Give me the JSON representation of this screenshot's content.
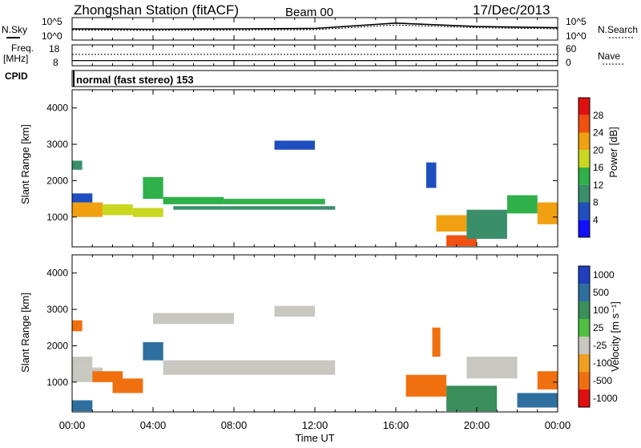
{
  "header": {
    "station": "Zhongshan Station (fitACF)",
    "beam": "Beam 00",
    "date": "17/Dec/2013"
  },
  "nsky_panel": {
    "left_label": "N.Sky",
    "right_label": "N.Search",
    "left_ticks": [
      "10^5",
      "10^0"
    ],
    "right_ticks": [
      "10^5",
      "10^0"
    ]
  },
  "freq_panel": {
    "left_label_1": "Freq.",
    "left_label_2": "[MHz]",
    "right_label": "Nave",
    "left_ticks": [
      "18",
      "8"
    ],
    "right_ticks": [
      "60",
      "0"
    ],
    "cpid_label": "CPID"
  },
  "cpid": {
    "text": "normal (fast stereo) 153"
  },
  "x_axis": {
    "tick_labels": [
      "00:00",
      "04:00",
      "08:00",
      "12:00",
      "16:00",
      "20:00",
      "00:00"
    ],
    "label": "Time UT"
  },
  "power_panel": {
    "ylabel": "Slant Range [km]",
    "y_ticks": [
      "1000",
      "2000",
      "3000",
      "4000"
    ],
    "colorbar_label": "Power [dB]",
    "colorbar_ticks": [
      "4",
      "8",
      "12",
      "16",
      "20",
      "24",
      "28"
    ],
    "colors": [
      "#1010ff",
      "#1f4fbf",
      "#3a8f6a",
      "#2fb04a",
      "#c8d820",
      "#f0a010",
      "#f05010",
      "#e01010"
    ]
  },
  "velocity_panel": {
    "ylabel": "Slant Range [km]",
    "y_ticks": [
      "1000",
      "2000",
      "3000",
      "4000"
    ],
    "colorbar_label": "Velocity [m s⁻¹]",
    "colorbar_ticks": [
      "1000",
      "500",
      "100",
      "25",
      "-25",
      "-100",
      "-500",
      "-1000"
    ],
    "colors": [
      "#2040c0",
      "#2f6f9f",
      "#3a8f5a",
      "#50c040",
      "#c8c8c0",
      "#f0a020",
      "#f07010",
      "#e01010"
    ]
  },
  "chart_data": [
    {
      "type": "line",
      "title": "N.Sky / N.Search",
      "x": [
        "00:00",
        "04:00",
        "08:00",
        "12:00",
        "16:00",
        "20:00",
        "24:00"
      ],
      "series": [
        {
          "name": "N.Sky",
          "values": [
            2.5,
            2.4,
            2.5,
            2.6,
            4.0,
            3.1,
            2.8
          ]
        },
        {
          "name": "N.Search",
          "values": [
            2.2,
            2.1,
            2.2,
            2.3,
            3.5,
            2.8,
            2.5
          ]
        }
      ]
    },
    {
      "type": "line",
      "title": "Freq. / Nave",
      "x": [
        "00:00",
        "04:00",
        "08:00",
        "12:00",
        "16:00",
        "20:00",
        "24:00"
      ],
      "series": [
        {
          "name": "Freq.",
          "values": [
            10,
            10,
            10,
            10,
            10,
            10,
            10
          ]
        },
        {
          "name": "Nave",
          "values": [
            33,
            33,
            33,
            33,
            33,
            33,
            33
          ]
        }
      ]
    },
    {
      "type": "heatmap",
      "title": "Power [dB]",
      "xlim": [
        0,
        24
      ],
      "ylim": [
        180,
        4500
      ],
      "cells": [
        [
          0.0,
          1.5,
          1000,
          1400,
          22
        ],
        [
          0.0,
          1.0,
          1400,
          1650,
          6
        ],
        [
          0.0,
          0.5,
          2300,
          2550,
          8
        ],
        [
          1.5,
          3.0,
          1050,
          1350,
          16
        ],
        [
          3.0,
          4.5,
          1000,
          1250,
          18
        ],
        [
          3.5,
          4.5,
          1500,
          2100,
          12
        ],
        [
          4.5,
          7.5,
          1350,
          1550,
          12
        ],
        [
          5.0,
          13.0,
          1200,
          1300,
          8
        ],
        [
          7.5,
          12.5,
          1350,
          1500,
          14
        ],
        [
          10.0,
          12.0,
          2850,
          3100,
          6
        ],
        [
          18.0,
          19.5,
          600,
          1050,
          20
        ],
        [
          18.5,
          20.0,
          200,
          500,
          24
        ],
        [
          19.5,
          21.5,
          400,
          1200,
          10
        ],
        [
          21.5,
          23.0,
          1100,
          1600,
          12
        ],
        [
          23.0,
          24.0,
          800,
          1400,
          22
        ],
        [
          17.5,
          18.0,
          1800,
          2500,
          6
        ]
      ]
    },
    {
      "type": "heatmap",
      "title": "Velocity [m s⁻¹]",
      "xlim": [
        0,
        24
      ],
      "ylim": [
        180,
        4500
      ],
      "cells": [
        [
          0.0,
          0.5,
          2400,
          2700,
          -300
        ],
        [
          0.0,
          1.5,
          1000,
          1400,
          0
        ],
        [
          0.0,
          1.0,
          1400,
          1700,
          0
        ],
        [
          2.0,
          3.5,
          700,
          1100,
          -300
        ],
        [
          1.0,
          2.5,
          1000,
          1300,
          -200
        ],
        [
          3.5,
          4.5,
          1600,
          2100,
          150
        ],
        [
          4.5,
          13.0,
          1200,
          1600,
          0
        ],
        [
          10.0,
          12.0,
          2800,
          3100,
          0
        ],
        [
          4.0,
          8.0,
          2600,
          2900,
          0
        ],
        [
          16.5,
          18.5,
          600,
          1200,
          -300
        ],
        [
          18.5,
          21.0,
          200,
          900,
          80
        ],
        [
          19.5,
          22.0,
          1100,
          1700,
          0
        ],
        [
          22.0,
          24.0,
          300,
          700,
          150
        ],
        [
          23.0,
          24.0,
          800,
          1300,
          -200
        ],
        [
          17.8,
          18.2,
          1700,
          2500,
          -150
        ],
        [
          0.0,
          1.0,
          200,
          500,
          150
        ]
      ]
    }
  ]
}
